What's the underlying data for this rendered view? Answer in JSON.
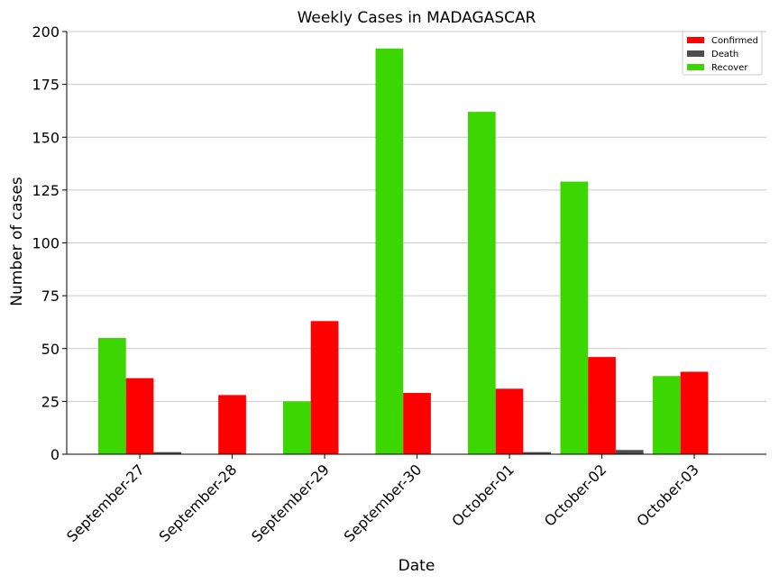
{
  "chart_data": {
    "type": "bar",
    "title": "Weekly Cases in MADAGASCAR",
    "xlabel": "Date",
    "ylabel": "Number of cases",
    "categories": [
      "September-27",
      "September-28",
      "September-29",
      "September-30",
      "October-01",
      "October-02",
      "October-03"
    ],
    "series": [
      {
        "name": "Recover",
        "color": "#3cd700",
        "values": [
          55,
          0,
          25,
          192,
          162,
          129,
          37
        ]
      },
      {
        "name": "Confirmed",
        "color": "#ff0000",
        "values": [
          36,
          28,
          63,
          29,
          31,
          46,
          39
        ]
      },
      {
        "name": "Death",
        "color": "#4d4d4d",
        "values": [
          1,
          0,
          0,
          0,
          1,
          2,
          0
        ]
      }
    ],
    "legend_order": [
      "Confirmed",
      "Death",
      "Recover"
    ],
    "ylim": [
      0,
      200
    ],
    "yticks": [
      0,
      25,
      50,
      75,
      100,
      125,
      150,
      175,
      200
    ],
    "grid": "horizontal",
    "legend_position": "top-right"
  }
}
